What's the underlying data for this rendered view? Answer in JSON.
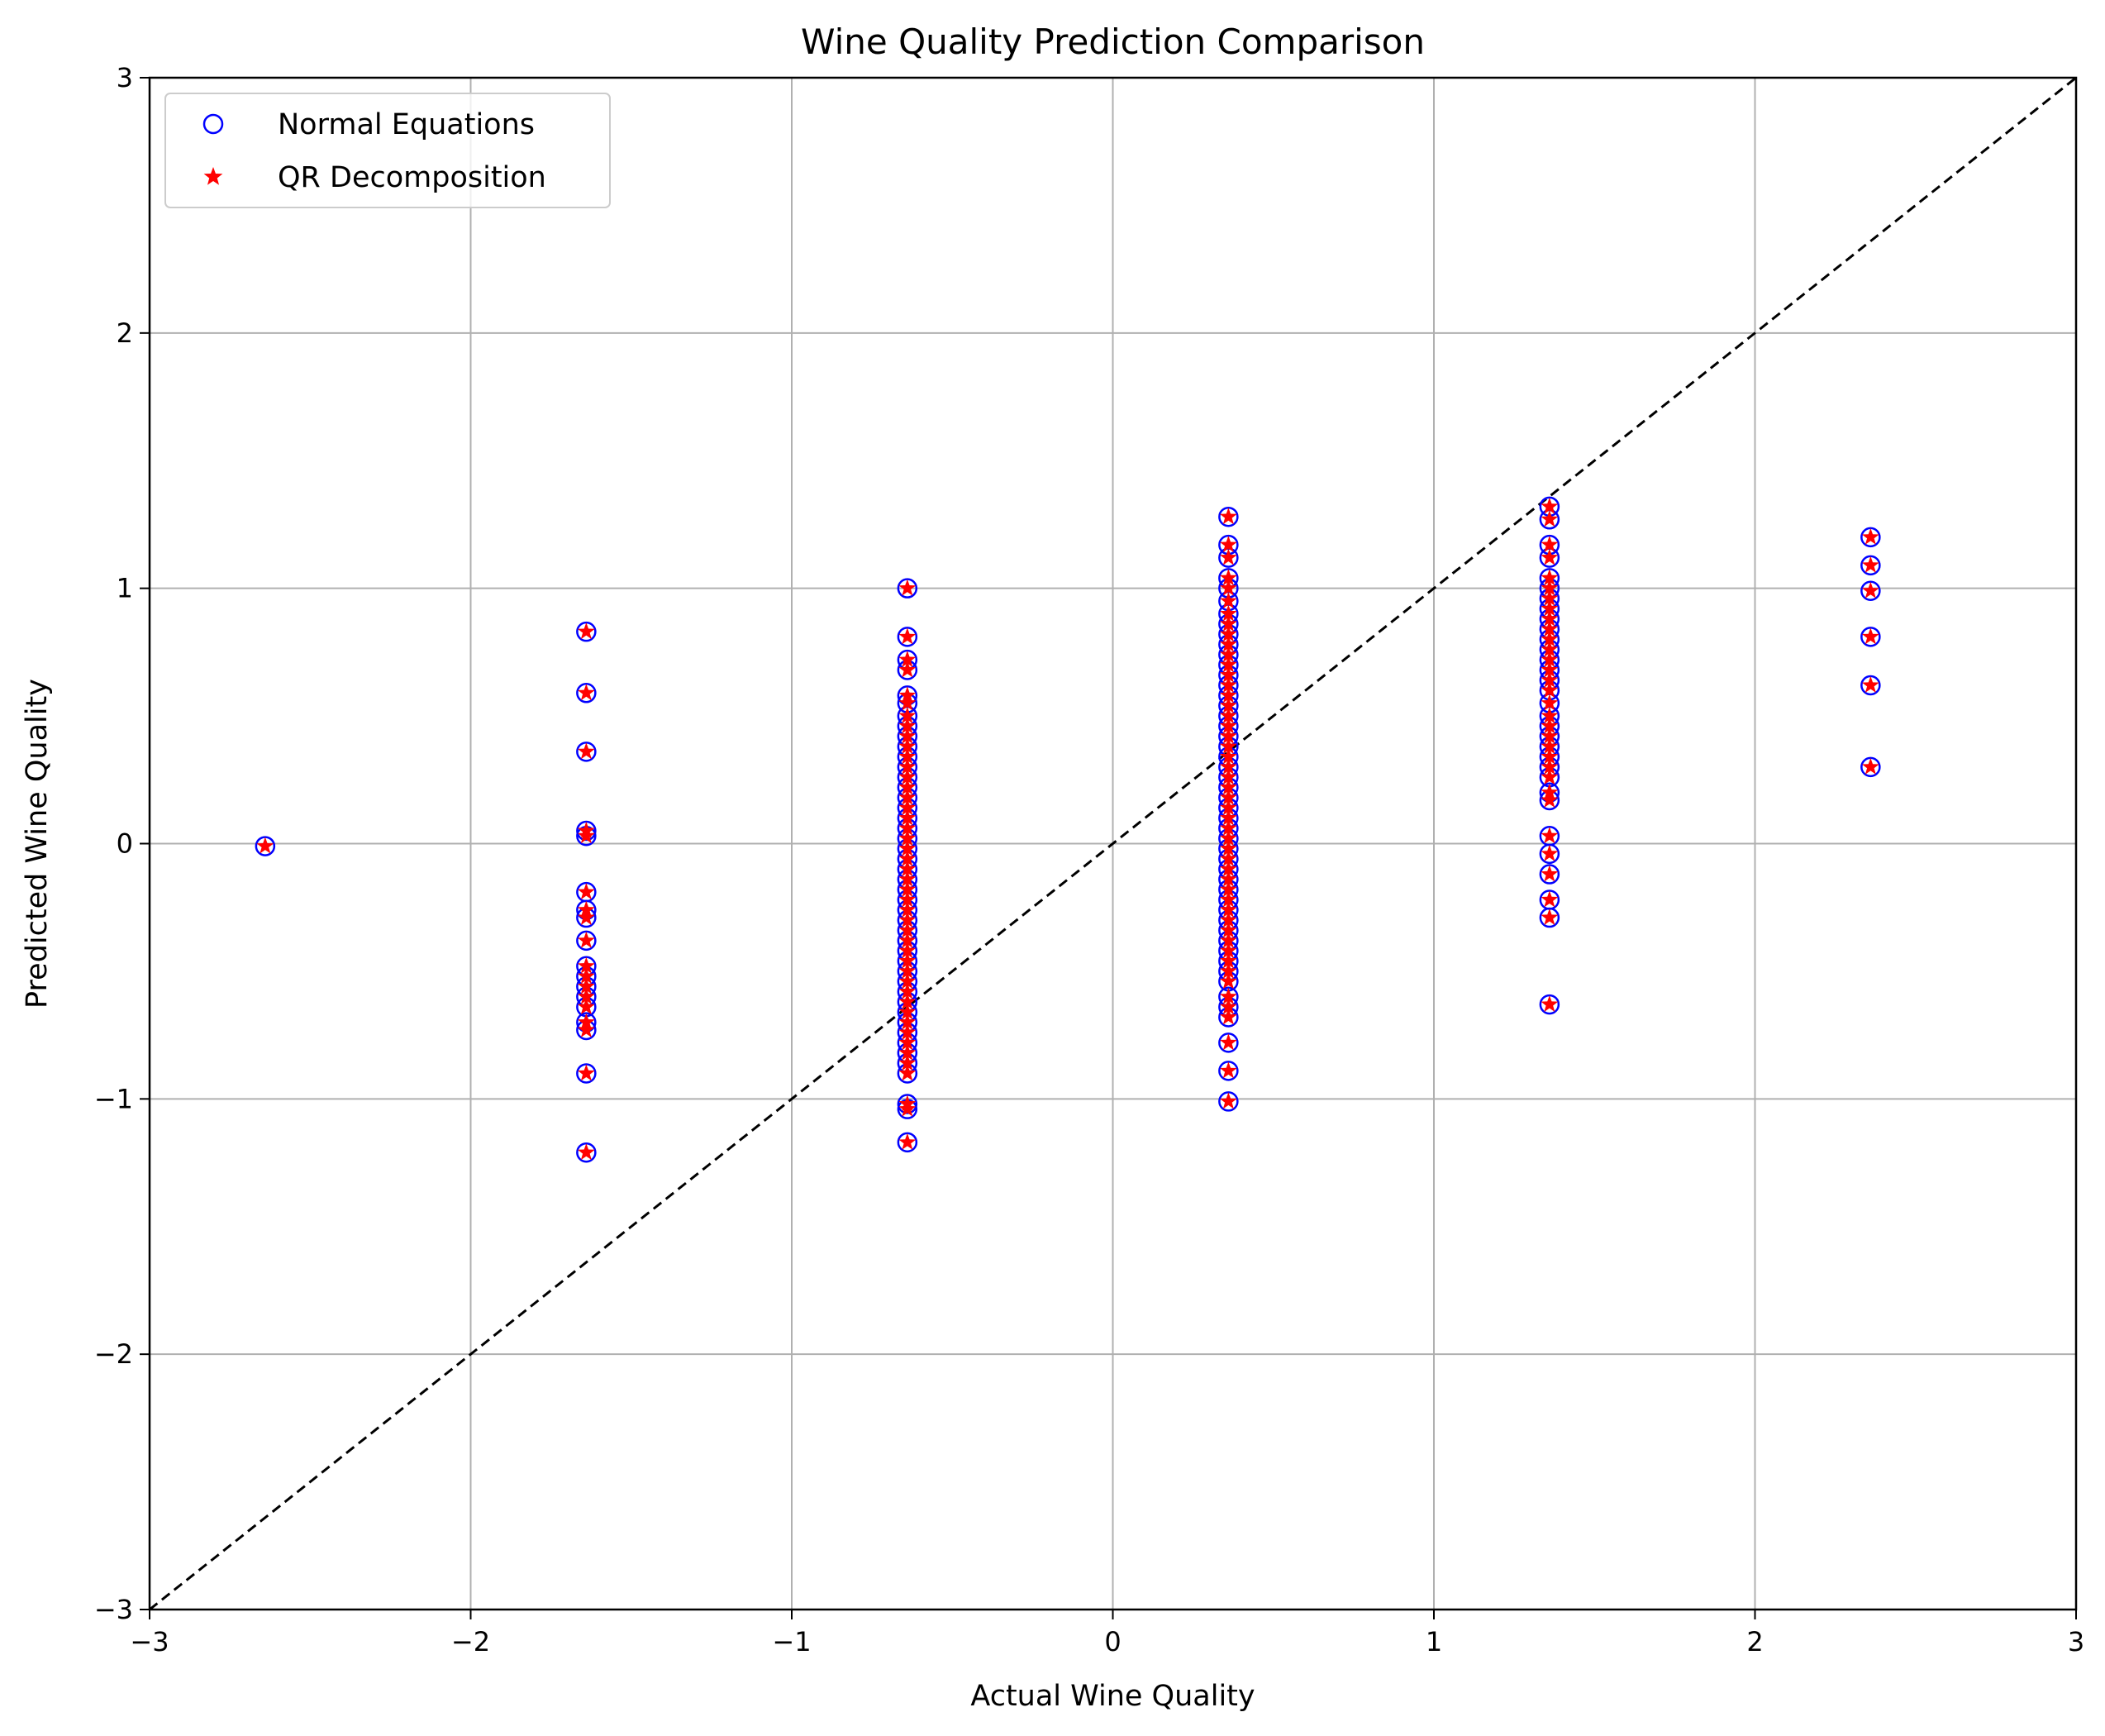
{
  "chart_data": {
    "type": "scatter",
    "title": "Wine Quality Prediction Comparison",
    "xlabel": "Actual Wine Quality",
    "ylabel": "Predicted Wine Quality",
    "xlim": [
      -3,
      3
    ],
    "ylim": [
      -3,
      3
    ],
    "xticks": [
      -3,
      -2,
      -1,
      0,
      1,
      2,
      3
    ],
    "yticks": [
      -3,
      -2,
      -1,
      0,
      1,
      2,
      3
    ],
    "tick_labels": {
      "x": [
        "−3",
        "−2",
        "−1",
        "0",
        "1",
        "2",
        "3"
      ],
      "y": [
        "−3",
        "−2",
        "−1",
        "0",
        "1",
        "2",
        "3"
      ]
    },
    "grid": true,
    "legend_position": "top-left",
    "reference_line": {
      "style": "dashed",
      "color": "#000000",
      "from": [
        -3,
        -3
      ],
      "to": [
        3,
        3
      ]
    },
    "series": [
      {
        "name": "Normal Equations",
        "marker": "circle-open",
        "color": "#0000ff"
      },
      {
        "name": "QR Decomposition",
        "marker": "star",
        "color": "#ff0000"
      }
    ],
    "points": [
      {
        "x": -2.64,
        "y": [
          -0.01
        ]
      },
      {
        "x": -1.64,
        "y": [
          0.83,
          0.59,
          0.36,
          0.05,
          0.03,
          -0.19,
          -0.26,
          -0.29,
          -0.38,
          -0.48,
          -0.52,
          -0.56,
          -0.6,
          -0.64,
          -0.7,
          -0.73,
          -0.9,
          -1.21
        ]
      },
      {
        "x": -0.64,
        "y": [
          1.0,
          0.81,
          0.72,
          0.68,
          0.58,
          0.55,
          0.5,
          0.46,
          0.42,
          0.38,
          0.34,
          0.3,
          0.26,
          0.22,
          0.18,
          0.14,
          0.1,
          0.06,
          0.02,
          -0.02,
          -0.06,
          -0.1,
          -0.14,
          -0.18,
          -0.22,
          -0.26,
          -0.3,
          -0.34,
          -0.38,
          -0.42,
          -0.46,
          -0.5,
          -0.54,
          -0.58,
          -0.62,
          -0.66,
          -0.7,
          -0.74,
          -0.78,
          -0.82,
          -0.86,
          -0.9,
          -1.02,
          -1.04,
          -1.17
        ]
      },
      {
        "x": 0.36,
        "y": [
          1.28,
          1.17,
          1.12,
          1.04,
          1.0,
          0.95,
          0.9,
          0.86,
          0.82,
          0.78,
          0.74,
          0.7,
          0.66,
          0.62,
          0.58,
          0.54,
          0.5,
          0.46,
          0.42,
          0.38,
          0.34,
          0.3,
          0.26,
          0.22,
          0.18,
          0.14,
          0.1,
          0.06,
          0.02,
          -0.02,
          -0.06,
          -0.1,
          -0.14,
          -0.18,
          -0.22,
          -0.26,
          -0.3,
          -0.34,
          -0.38,
          -0.42,
          -0.46,
          -0.5,
          -0.54,
          -0.6,
          -0.64,
          -0.68,
          -0.78,
          -0.89,
          -1.01
        ]
      },
      {
        "x": 1.36,
        "y": [
          1.32,
          1.27,
          1.17,
          1.12,
          1.04,
          1.0,
          0.96,
          0.92,
          0.88,
          0.84,
          0.8,
          0.76,
          0.72,
          0.68,
          0.64,
          0.6,
          0.55,
          0.5,
          0.46,
          0.42,
          0.38,
          0.34,
          0.3,
          0.26,
          0.2,
          0.17,
          0.03,
          -0.04,
          -0.12,
          -0.22,
          -0.29,
          -0.63
        ]
      },
      {
        "x": 2.36,
        "y": [
          1.2,
          1.09,
          0.99,
          0.81,
          0.62,
          0.3
        ]
      }
    ]
  }
}
